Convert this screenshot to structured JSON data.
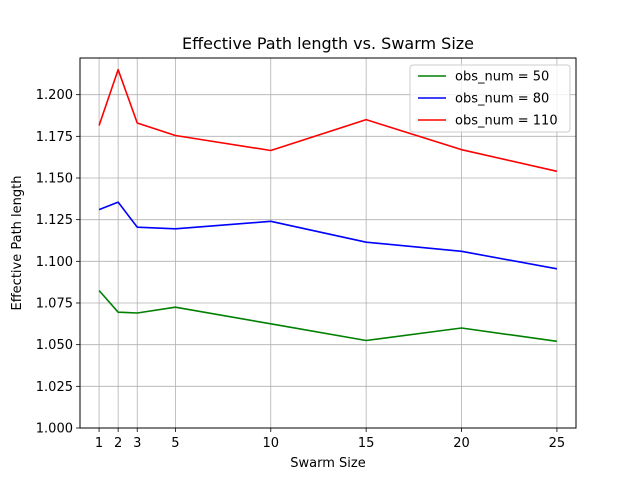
{
  "chart_data": {
    "type": "line",
    "title": "Effective Path length vs. Swarm Size",
    "xlabel": "Swarm Size",
    "ylabel": "Effective Path length",
    "x": [
      1,
      2,
      3,
      5,
      10,
      15,
      20,
      25
    ],
    "x_ticks": [
      1,
      2,
      3,
      5,
      10,
      15,
      20,
      25
    ],
    "xlim": [
      0,
      26
    ],
    "ylim": [
      1.0,
      1.222
    ],
    "y_ticks": [
      "1.000",
      "1.025",
      "1.050",
      "1.075",
      "1.100",
      "1.125",
      "1.150",
      "1.175",
      "1.200"
    ],
    "grid": true,
    "legend_position": "top-right",
    "series": [
      {
        "name": "obs_num = 50",
        "color": "#008000",
        "values": [
          1.0825,
          1.0695,
          1.069,
          1.0725,
          1.0625,
          1.0525,
          1.06,
          1.052
        ]
      },
      {
        "name": "obs_num = 80",
        "color": "#0000ff",
        "values": [
          1.131,
          1.1355,
          1.1205,
          1.1195,
          1.124,
          1.1115,
          1.106,
          1.0955
        ]
      },
      {
        "name": "obs_num = 110",
        "color": "#ff0000",
        "values": [
          1.1815,
          1.215,
          1.183,
          1.1755,
          1.1665,
          1.185,
          1.167,
          1.154
        ]
      }
    ]
  }
}
